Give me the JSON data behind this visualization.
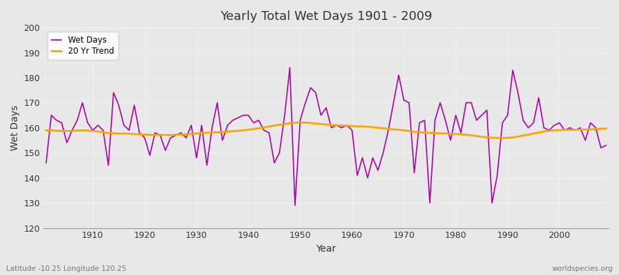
{
  "title": "Yearly Total Wet Days 1901 - 2009",
  "xlabel": "Year",
  "ylabel": "Wet Days",
  "footnote_left": "Latitude -10.25 Longitude 120.25",
  "footnote_right": "worldspecies.org",
  "ylim": [
    120,
    200
  ],
  "yticks": [
    120,
    130,
    140,
    150,
    160,
    170,
    180,
    190,
    200
  ],
  "start_year": 1901,
  "end_year": 2009,
  "wet_days_color": "#aa00aa",
  "trend_color": "#FFA500",
  "background_color": "#e8e8e8",
  "plot_bg_color": "#e8e8e8",
  "wet_days": [
    146,
    165,
    163,
    162,
    154,
    159,
    163,
    170,
    162,
    159,
    161,
    159,
    145,
    174,
    169,
    161,
    159,
    169,
    158,
    156,
    149,
    158,
    157,
    151,
    156,
    157,
    158,
    156,
    161,
    148,
    161,
    145,
    160,
    170,
    155,
    161,
    163,
    164,
    165,
    165,
    162,
    163,
    159,
    158,
    146,
    150,
    165,
    184,
    129,
    163,
    170,
    176,
    174,
    165,
    168,
    160,
    161,
    160,
    161,
    159,
    141,
    148,
    140,
    148,
    143,
    150,
    159,
    170,
    181,
    171,
    170,
    142,
    162,
    163,
    130,
    163,
    170,
    163,
    155,
    165,
    158,
    170,
    170,
    163,
    165,
    167,
    130,
    141,
    162,
    165,
    183,
    174,
    163,
    160,
    162,
    172,
    160,
    159,
    161,
    162,
    159,
    160,
    159,
    160,
    155,
    162,
    160,
    152,
    153
  ],
  "trend": [
    159.0,
    159.0,
    158.8,
    158.7,
    158.7,
    158.8,
    158.9,
    159.0,
    158.9,
    158.8,
    158.5,
    158.2,
    157.9,
    157.8,
    157.7,
    157.7,
    157.6,
    157.5,
    157.4,
    157.3,
    157.2,
    157.2,
    157.2,
    157.1,
    157.1,
    157.2,
    157.3,
    157.4,
    157.5,
    157.7,
    157.9,
    158.0,
    158.1,
    158.2,
    158.3,
    158.5,
    158.6,
    158.8,
    159.0,
    159.2,
    159.5,
    159.8,
    160.1,
    160.5,
    160.9,
    161.2,
    161.5,
    161.8,
    162.0,
    162.1,
    162.1,
    161.9,
    161.7,
    161.5,
    161.3,
    161.1,
    161.0,
    160.9,
    160.8,
    160.7,
    160.6,
    160.5,
    160.4,
    160.2,
    160.0,
    159.8,
    159.6,
    159.4,
    159.2,
    159.0,
    158.7,
    158.4,
    158.2,
    158.1,
    158.0,
    157.9,
    157.8,
    157.7,
    157.6,
    157.5,
    157.4,
    157.2,
    157.0,
    156.7,
    156.4,
    156.2,
    156.0,
    155.9,
    155.9,
    156.0,
    156.2,
    156.5,
    156.9,
    157.3,
    157.7,
    158.1,
    158.5,
    158.8,
    159.0,
    159.1,
    159.2,
    159.2,
    159.2,
    159.3,
    159.3,
    159.4,
    159.5,
    159.6,
    159.7
  ]
}
